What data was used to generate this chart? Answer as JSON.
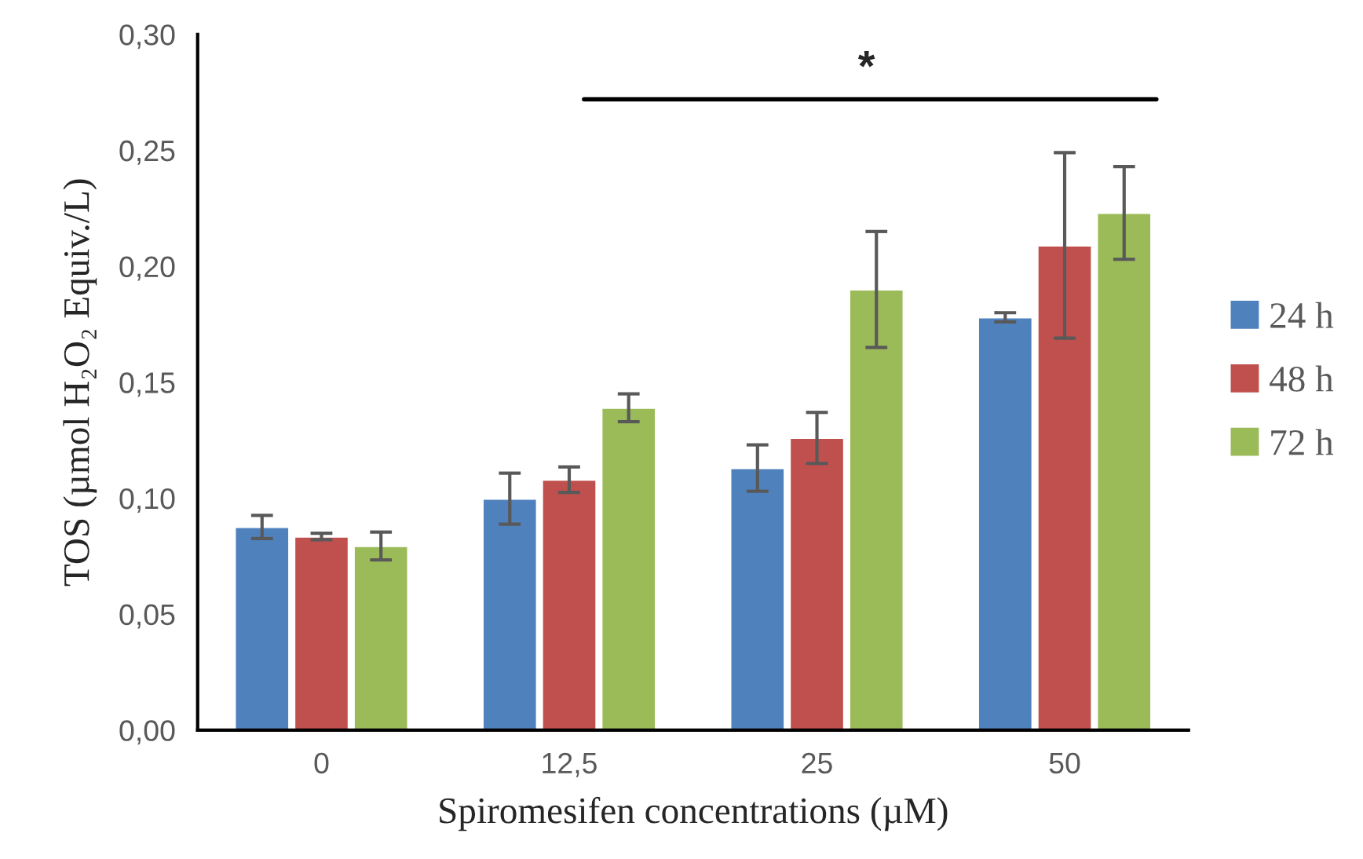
{
  "chart_data": {
    "type": "bar",
    "xlabel": "Spiromesifen concentrations (µM)",
    "ylabel": "TOS (µmol H₂O₂ Equiv./L)",
    "categories": [
      "0",
      "12,5",
      "25",
      "50"
    ],
    "series": [
      {
        "name": "24 h",
        "color": "#4f81bd",
        "values": [
          0.0876,
          0.0998,
          0.113,
          0.178
        ],
        "errors": [
          0.005,
          0.011,
          0.01,
          0.002
        ]
      },
      {
        "name": "48 h",
        "color": "#c0504d",
        "values": [
          0.0835,
          0.108,
          0.126,
          0.209
        ],
        "errors": [
          0.0014,
          0.0055,
          0.011,
          0.04
        ]
      },
      {
        "name": "72 h",
        "color": "#9bbb59",
        "values": [
          0.0794,
          0.139,
          0.19,
          0.223
        ],
        "errors": [
          0.006,
          0.006,
          0.025,
          0.02
        ]
      }
    ],
    "ylim": [
      0,
      0.3
    ],
    "yticks": [
      {
        "value": 0,
        "label": "0,00"
      },
      {
        "value": 0.05,
        "label": "0,05"
      },
      {
        "value": 0.1,
        "label": "0,10"
      },
      {
        "value": 0.15,
        "label": "0,15"
      },
      {
        "value": 0.2,
        "label": "0,20"
      },
      {
        "value": 0.25,
        "label": "0,25"
      },
      {
        "value": 0.3,
        "label": "0,30"
      }
    ],
    "annotations": [
      "*"
    ],
    "grid": false,
    "legend": "right"
  }
}
